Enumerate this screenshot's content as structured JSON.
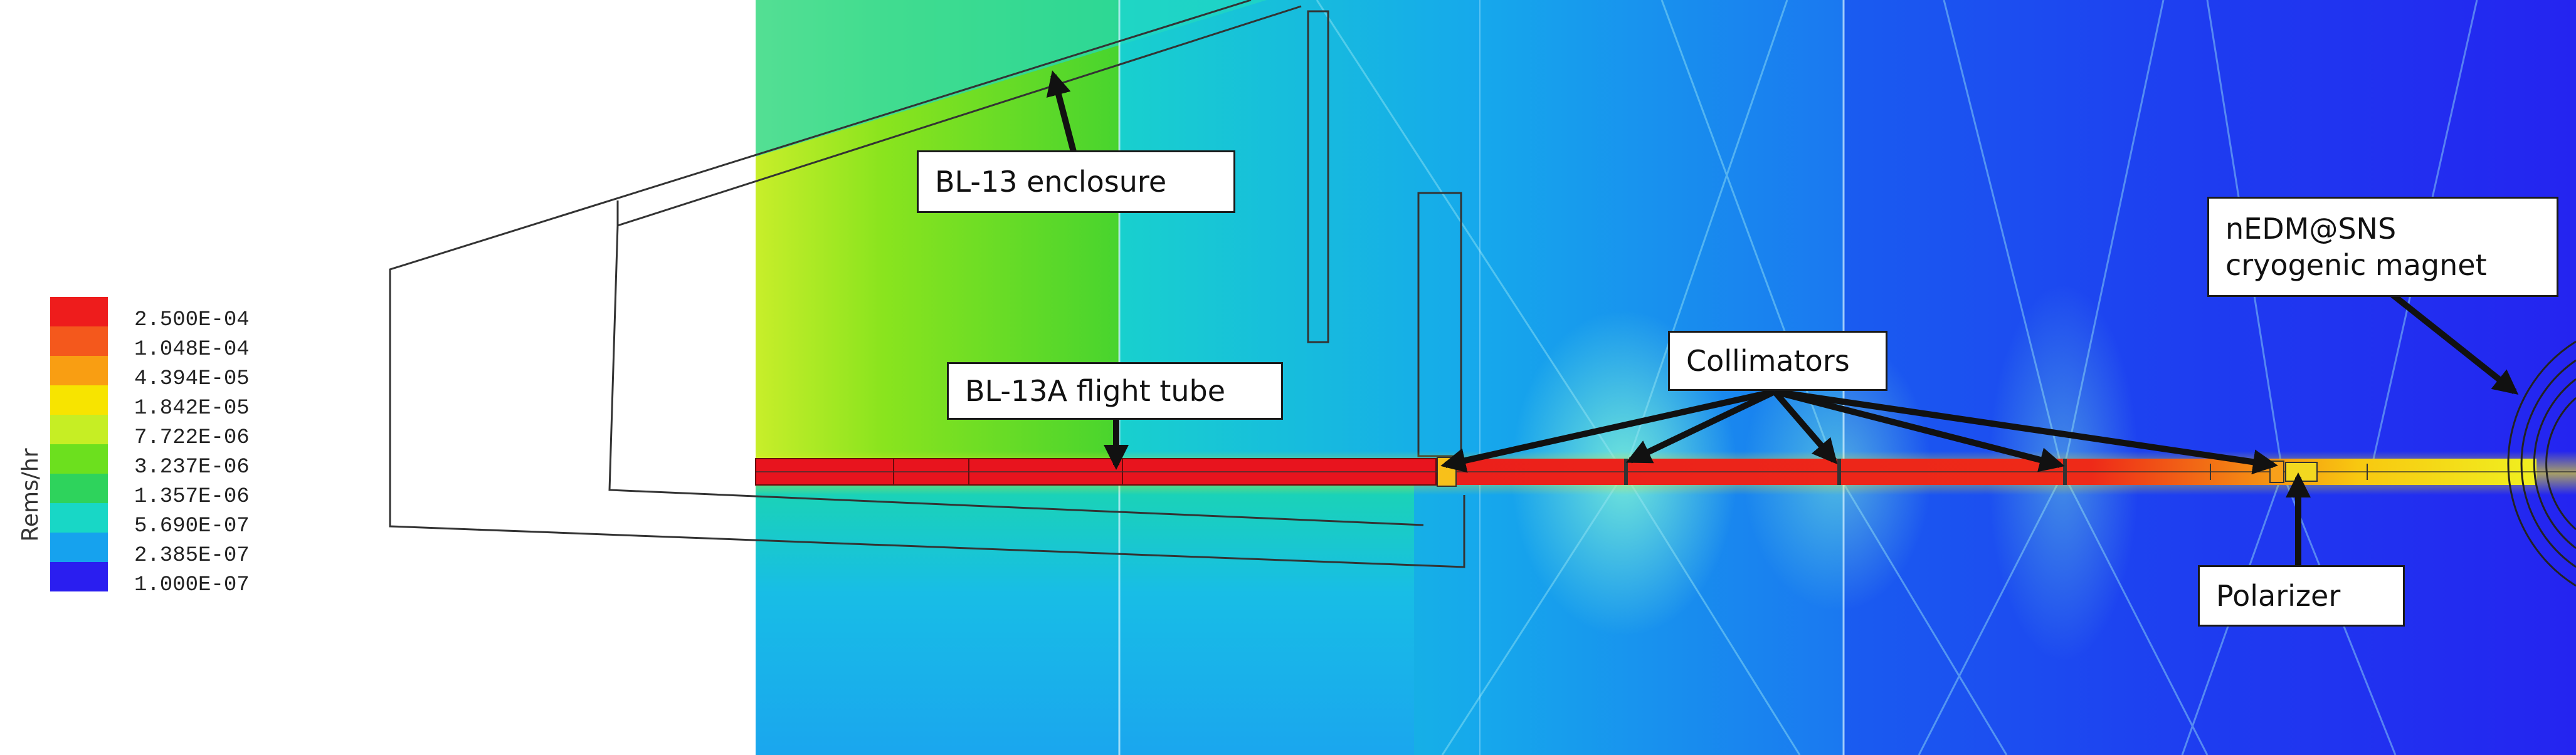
{
  "legend": {
    "title": "Rems/hr",
    "entries": [
      {
        "label": "2.500E-04",
        "color": "#ee1c1c"
      },
      {
        "label": "1.048E-04",
        "color": "#f4581c"
      },
      {
        "label": "4.394E-05",
        "color": "#f99e12"
      },
      {
        "label": "1.842E-05",
        "color": "#f7e400"
      },
      {
        "label": "7.722E-06",
        "color": "#c6ee24"
      },
      {
        "label": "3.237E-06",
        "color": "#6ce01e"
      },
      {
        "label": "1.357E-06",
        "color": "#2ed35c"
      },
      {
        "label": "5.690E-07",
        "color": "#18d7c6"
      },
      {
        "label": "2.385E-07",
        "color": "#16a2ee"
      },
      {
        "label": "1.000E-07",
        "color": "#2a1ef0"
      }
    ]
  },
  "callouts": {
    "enclosure": "BL-13 enclosure",
    "flight_tube": "BL-13A flight tube",
    "collimators": "Collimators",
    "magnet_line1": "nEDM@SNS",
    "magnet_line2": "cryogenic magnet",
    "polarizer": "Polarizer"
  },
  "colors": {
    "beam": "#e8141e",
    "field_green": "#7ee21e",
    "field_cyan": "#18c9e6",
    "field_blue": "#1c3cf0",
    "outline": "#333333"
  }
}
